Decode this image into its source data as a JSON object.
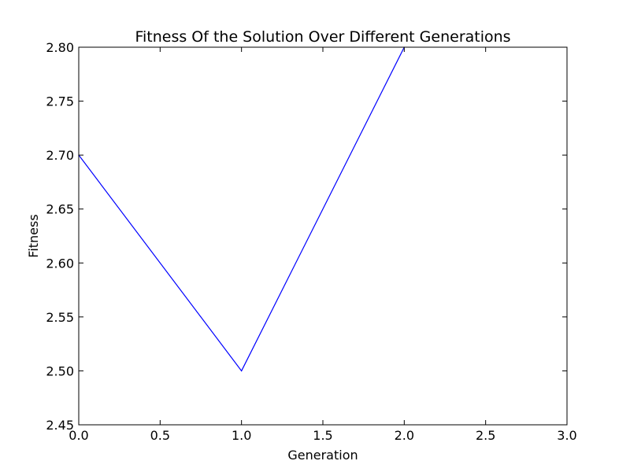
{
  "chart_data": {
    "type": "line",
    "title": "Fitness Of the Solution Over Different Generations",
    "xlabel": "Generation",
    "ylabel": "Fitness",
    "xlim": [
      0.0,
      3.0
    ],
    "ylim": [
      2.45,
      2.8
    ],
    "xticks": [
      "0.0",
      "0.5",
      "1.0",
      "1.5",
      "2.0",
      "2.5",
      "3.0"
    ],
    "yticks": [
      "2.45",
      "2.50",
      "2.55",
      "2.60",
      "2.65",
      "2.70",
      "2.75",
      "2.80"
    ],
    "grid": false,
    "series": [
      {
        "color": "#0000ff",
        "x": [
          0,
          1,
          2
        ],
        "y": [
          2.7,
          2.5,
          2.8
        ]
      }
    ]
  }
}
